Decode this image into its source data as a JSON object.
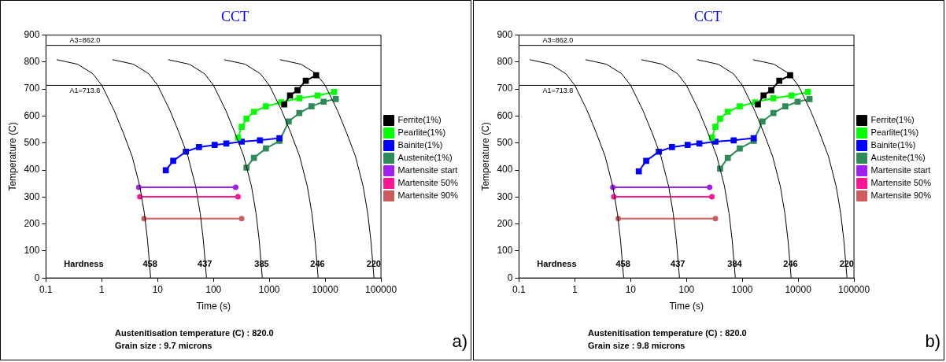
{
  "chart_data": [
    {
      "type": "line",
      "title": "CCT",
      "xlabel": "Time (s)",
      "ylabel": "Temperature (C)",
      "log": "x",
      "xlim": [
        0.1,
        100000
      ],
      "xticks": [
        0.1,
        1,
        10,
        100,
        1000,
        10000,
        100000
      ],
      "ylim": [
        0,
        900
      ],
      "yticks": [
        0,
        100,
        200,
        300,
        400,
        500,
        600,
        700,
        800,
        900
      ],
      "grid": false,
      "legend": "right",
      "series": [
        {
          "color": "#000000",
          "marker": "none",
          "x": [
            0.155,
            0.37,
            0.69,
            1.0,
            1.66,
            2.4,
            3.5,
            4.8,
            5.8,
            6.6,
            7.5
          ],
          "values": [
            809,
            792,
            757,
            714,
            621,
            540,
            450,
            339,
            238,
            138,
            0
          ]
        },
        {
          "color": "#000000",
          "marker": "none",
          "x": [
            1.55,
            3.7,
            6.9,
            10,
            16.6,
            24,
            35,
            48,
            58,
            66,
            75
          ],
          "values": [
            809,
            792,
            757,
            714,
            621,
            540,
            450,
            339,
            238,
            138,
            0
          ]
        },
        {
          "color": "#000000",
          "marker": "none",
          "x": [
            15.5,
            37,
            69,
            100,
            166,
            240,
            350,
            480,
            580,
            660,
            750
          ],
          "values": [
            809,
            792,
            757,
            714,
            621,
            540,
            450,
            339,
            238,
            138,
            0
          ]
        },
        {
          "color": "#000000",
          "marker": "none",
          "x": [
            155,
            370,
            690,
            1000,
            1660,
            2400,
            3500,
            4800,
            5800,
            6600,
            7500
          ],
          "values": [
            809,
            792,
            757,
            714,
            621,
            540,
            450,
            339,
            238,
            138,
            0
          ]
        },
        {
          "color": "#000000",
          "marker": "none",
          "x": [
            1550,
            3700,
            6900,
            10000,
            16600,
            24000,
            35000,
            48000,
            58000,
            66000,
            75000
          ],
          "values": [
            809,
            792,
            757,
            714,
            621,
            540,
            450,
            339,
            238,
            138,
            0
          ]
        },
        {
          "name": "Ferrite(1%)",
          "color": "#000000",
          "marker": "square",
          "x": [
            1850,
            2350,
            3200,
            4500,
            6900
          ],
          "values": [
            643,
            676,
            696,
            731,
            751
          ]
        },
        {
          "name": "Pearlite(1%)",
          "color": "#00ff00",
          "marker": "square",
          "x": [
            275,
            320,
            390,
            530,
            870,
            1630,
            3450,
            7300,
            14500
          ],
          "values": [
            520,
            560,
            590,
            616,
            636,
            651,
            666,
            676,
            689
          ]
        },
        {
          "name": "Bainite(1%)",
          "color": "#0000ff",
          "marker": "square",
          "x": [
            14,
            19,
            32,
            55,
            105,
            170,
            320,
            680,
            1520
          ],
          "values": [
            399,
            434,
            468,
            485,
            493,
            498,
            505,
            510,
            518
          ]
        },
        {
          "name": "Austenite(1%)",
          "color": "#2e8b57",
          "marker": "square",
          "x": [
            390,
            530,
            870,
            1520,
            2230,
            3450,
            5700,
            9400,
            15500
          ],
          "values": [
            409,
            445,
            480,
            508,
            580,
            611,
            636,
            653,
            663
          ]
        },
        {
          "name": "Martensite start",
          "color": "#a020f0",
          "marker": "circle",
          "x": [
            4.6,
            250
          ],
          "values": [
            336,
            336
          ]
        },
        {
          "name": "Martensite 50%",
          "color": "#ff1493",
          "marker": "circle",
          "x": [
            4.8,
            275
          ],
          "values": [
            301,
            301
          ]
        },
        {
          "name": "Martensite 90%",
          "color": "#cd5c5c",
          "marker": "circle",
          "x": [
            5.7,
            320
          ],
          "values": [
            220,
            220
          ]
        }
      ],
      "ref_lines": [
        {
          "axis": "y",
          "value": 862.0,
          "label": "A3=862.0",
          "color": "#000000"
        },
        {
          "axis": "y",
          "value": 713.8,
          "label": "A1=713.8",
          "color": "#000000"
        }
      ],
      "annotations": [
        "Hardness",
        {
          "text": "458",
          "x": 7.3,
          "y": 50
        },
        {
          "text": "437",
          "x": 70,
          "y": 50
        },
        {
          "text": "385",
          "x": 730,
          "y": 50
        },
        {
          "text": "246",
          "x": 7300,
          "y": 50
        },
        {
          "text": "220",
          "x": 74000,
          "y": 50
        },
        "Austenitisation temperature (C) : 820.0",
        "Grain size : 9.7 microns",
        "a)"
      ]
    },
    {
      "type": "line",
      "title": "CCT",
      "xlabel": "Time (s)",
      "ylabel": "Temperature (C)",
      "log": "x",
      "xlim": [
        0.1,
        100000
      ],
      "xticks": [
        0.1,
        1,
        10,
        100,
        1000,
        10000,
        100000
      ],
      "ylim": [
        0,
        900
      ],
      "yticks": [
        0,
        100,
        200,
        300,
        400,
        500,
        600,
        700,
        800,
        900
      ],
      "grid": false,
      "legend": "right",
      "series": [
        {
          "color": "#000000",
          "marker": "none",
          "x": [
            0.155,
            0.37,
            0.69,
            1.0,
            1.66,
            2.4,
            3.5,
            4.8,
            5.8,
            6.6,
            7.5
          ],
          "values": [
            809,
            792,
            757,
            714,
            621,
            540,
            450,
            339,
            238,
            138,
            0
          ]
        },
        {
          "color": "#000000",
          "marker": "none",
          "x": [
            1.55,
            3.7,
            6.9,
            10,
            16.6,
            24,
            35,
            48,
            58,
            66,
            75
          ],
          "values": [
            809,
            792,
            757,
            714,
            621,
            540,
            450,
            339,
            238,
            138,
            0
          ]
        },
        {
          "color": "#000000",
          "marker": "none",
          "x": [
            15.5,
            37,
            69,
            100,
            166,
            240,
            350,
            480,
            580,
            660,
            750
          ],
          "values": [
            809,
            792,
            757,
            714,
            621,
            540,
            450,
            339,
            238,
            138,
            0
          ]
        },
        {
          "color": "#000000",
          "marker": "none",
          "x": [
            155,
            370,
            690,
            1000,
            1660,
            2400,
            3500,
            4800,
            5800,
            6600,
            7500
          ],
          "values": [
            809,
            792,
            757,
            714,
            621,
            540,
            450,
            339,
            238,
            138,
            0
          ]
        },
        {
          "color": "#000000",
          "marker": "none",
          "x": [
            1550,
            3700,
            6900,
            10000,
            16600,
            24000,
            35000,
            48000,
            58000,
            66000,
            75000
          ],
          "values": [
            809,
            792,
            757,
            714,
            621,
            540,
            450,
            339,
            238,
            138,
            0
          ]
        },
        {
          "name": "Ferrite(1%)",
          "color": "#000000",
          "marker": "square",
          "x": [
            1900,
            2400,
            3300,
            4600,
            7200
          ],
          "values": [
            643,
            676,
            696,
            731,
            751
          ]
        },
        {
          "name": "Pearlite(1%)",
          "color": "#00ff00",
          "marker": "square",
          "x": [
            285,
            330,
            400,
            550,
            900,
            1700,
            3600,
            7600,
            15000
          ],
          "values": [
            520,
            560,
            590,
            616,
            636,
            651,
            666,
            676,
            689
          ]
        },
        {
          "name": "Bainite(1%)",
          "color": "#0000ff",
          "marker": "square",
          "x": [
            14,
            19,
            32,
            55,
            105,
            170,
            330,
            700,
            1600
          ],
          "values": [
            395,
            434,
            468,
            485,
            493,
            498,
            505,
            510,
            518
          ]
        },
        {
          "name": "Austenite(1%)",
          "color": "#2e8b57",
          "marker": "square",
          "x": [
            400,
            550,
            900,
            1600,
            2300,
            3600,
            5900,
            9800,
            16000
          ],
          "values": [
            405,
            445,
            480,
            508,
            580,
            611,
            636,
            653,
            663
          ]
        },
        {
          "name": "Martensite start",
          "color": "#a020f0",
          "marker": "circle",
          "x": [
            4.8,
            260
          ],
          "values": [
            336,
            336
          ]
        },
        {
          "name": "Martensite 50%",
          "color": "#ff1493",
          "marker": "circle",
          "x": [
            5.0,
            285
          ],
          "values": [
            301,
            301
          ]
        },
        {
          "name": "Martensite 90%",
          "color": "#cd5c5c",
          "marker": "circle",
          "x": [
            6.0,
            330
          ],
          "values": [
            220,
            220
          ]
        }
      ],
      "ref_lines": [
        {
          "axis": "y",
          "value": 862.0,
          "label": "A3=862.0",
          "color": "#000000"
        },
        {
          "axis": "y",
          "value": 713.8,
          "label": "A1=713.8",
          "color": "#000000"
        }
      ],
      "annotations": [
        "Hardness",
        {
          "text": "458",
          "x": 7.3,
          "y": 50
        },
        {
          "text": "437",
          "x": 70,
          "y": 50
        },
        {
          "text": "384",
          "x": 730,
          "y": 50
        },
        {
          "text": "246",
          "x": 7300,
          "y": 50
        },
        {
          "text": "220",
          "x": 74000,
          "y": 50
        },
        "Austenitisation temperature (C) : 820.0",
        "Grain size : 9.8 microns",
        "b)"
      ]
    }
  ]
}
